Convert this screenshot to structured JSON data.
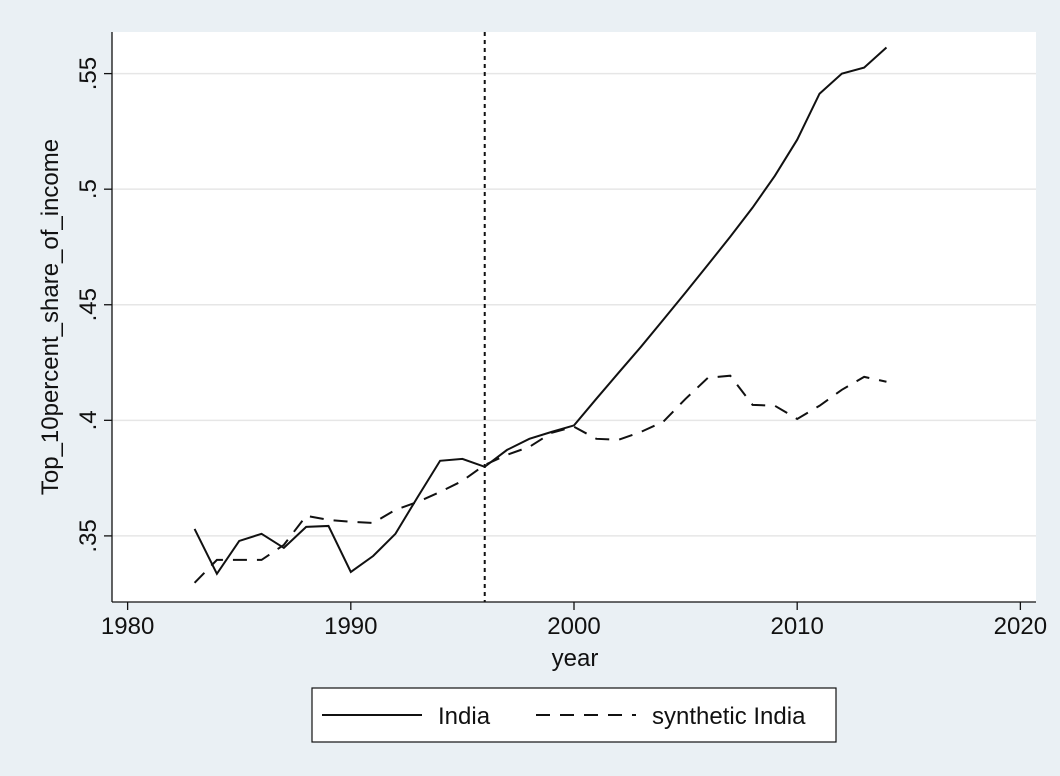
{
  "chart_data": {
    "type": "line",
    "xlabel": "year",
    "ylabel": "Top_10percent_share_of_income",
    "x": [
      1983,
      1984,
      1985,
      1986,
      1987,
      1988,
      1989,
      1990,
      1991,
      1992,
      1993,
      1994,
      1995,
      1996,
      1997,
      1998,
      1999,
      2000,
      2001,
      2002,
      2003,
      2004,
      2005,
      2006,
      2007,
      2008,
      2009,
      2010,
      2011,
      2012,
      2013,
      2014
    ],
    "series": [
      {
        "name": "India",
        "color": "#111111",
        "dash": "solid",
        "values": [
          0.353,
          0.3336,
          0.3478,
          0.3509,
          0.3448,
          0.3539,
          0.3543,
          0.3344,
          0.3413,
          0.3509,
          0.3669,
          0.3825,
          0.3833,
          0.3799,
          0.3872,
          0.392,
          0.395,
          0.3978,
          0.4093,
          0.4206,
          0.4318,
          0.4435,
          0.4553,
          0.4673,
          0.4794,
          0.492,
          0.5058,
          0.5214,
          0.5413,
          0.55,
          0.5526,
          0.5613
        ]
      },
      {
        "name": "synthetic India",
        "color": "#111111",
        "dash": "dashed",
        "values": [
          0.3297,
          0.3396,
          0.3396,
          0.3396,
          0.3461,
          0.3587,
          0.3569,
          0.3561,
          0.3556,
          0.3613,
          0.3647,
          0.369,
          0.3738,
          0.3807,
          0.3851,
          0.3885,
          0.3946,
          0.3972,
          0.392,
          0.3916,
          0.395,
          0.3994,
          0.4093,
          0.4184,
          0.4193,
          0.4067,
          0.4063,
          0.4006,
          0.4063,
          0.4132,
          0.4188,
          0.4167
        ]
      }
    ],
    "xlim": [
      1979.3,
      2020.7
    ],
    "xticks": [
      1980,
      1990,
      2000,
      2010,
      2020
    ],
    "ylim": [
      0.3214,
      0.568
    ],
    "yticks": [
      {
        "value": 0.35,
        "label": ".35"
      },
      {
        "value": 0.4,
        "label": ".4"
      },
      {
        "value": 0.45,
        "label": ".45"
      },
      {
        "value": 0.5,
        "label": ".5"
      },
      {
        "value": 0.55,
        "label": ".55"
      }
    ],
    "xline": 1996,
    "grid": true,
    "legend": "bottom"
  }
}
